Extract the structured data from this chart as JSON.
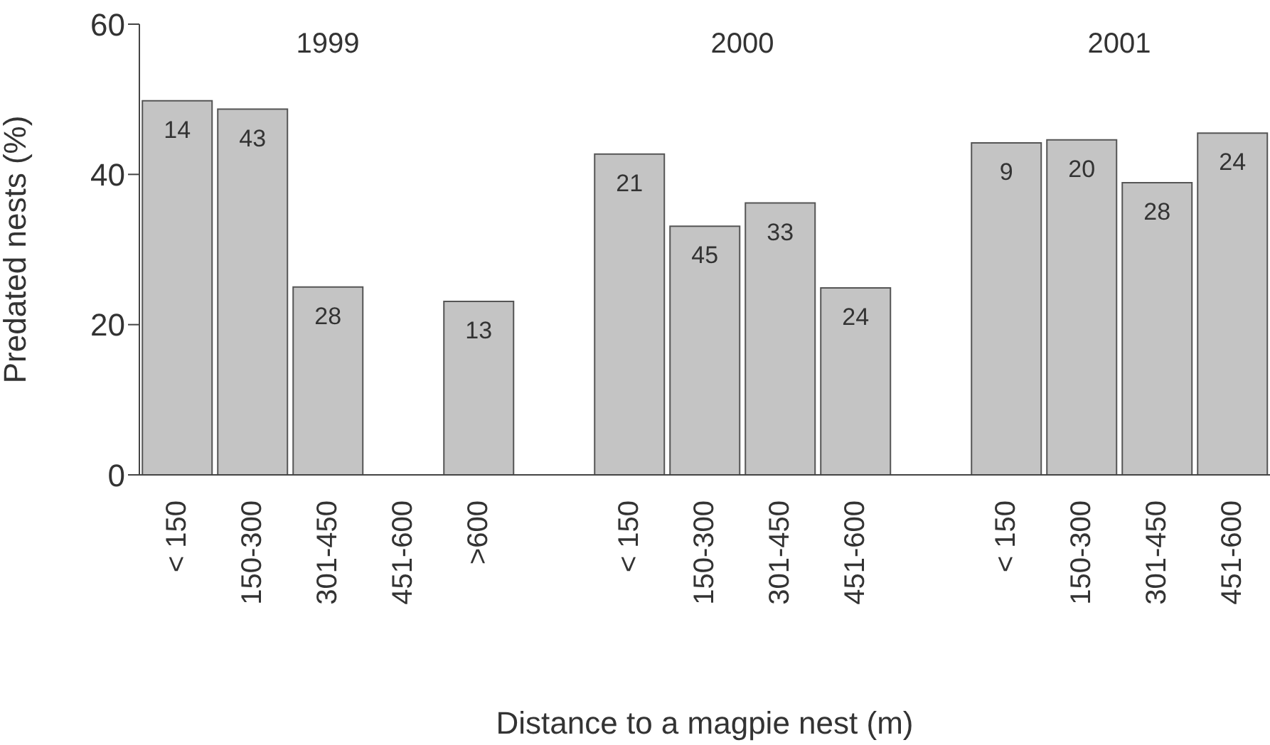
{
  "chart_data": {
    "type": "bar",
    "xlabel": "Distance to a magpie nest (m)",
    "ylabel": "Predated nests (%)",
    "categories": [
      "< 150",
      "150-300",
      "301-450",
      "451-600",
      ">600",
      null,
      "< 150",
      "150-300",
      "301-450",
      "451-600",
      null,
      "< 150",
      "150-300",
      "301-450",
      "451-600"
    ],
    "values": [
      49.8,
      48.7,
      25.0,
      null,
      23.1,
      null,
      42.7,
      33.1,
      36.2,
      24.9,
      null,
      44.2,
      44.6,
      38.9,
      45.5
    ],
    "color": "#c4c4c4",
    "ylim": [
      0,
      60
    ],
    "yticks": [
      0,
      20,
      40,
      60
    ],
    "grid": false,
    "legend": false,
    "annotations": [
      "1999",
      "2000",
      "2001",
      "14",
      "43",
      "28",
      "13",
      "21",
      "45",
      "33",
      "24",
      "9",
      "20",
      "28",
      "24"
    ]
  }
}
